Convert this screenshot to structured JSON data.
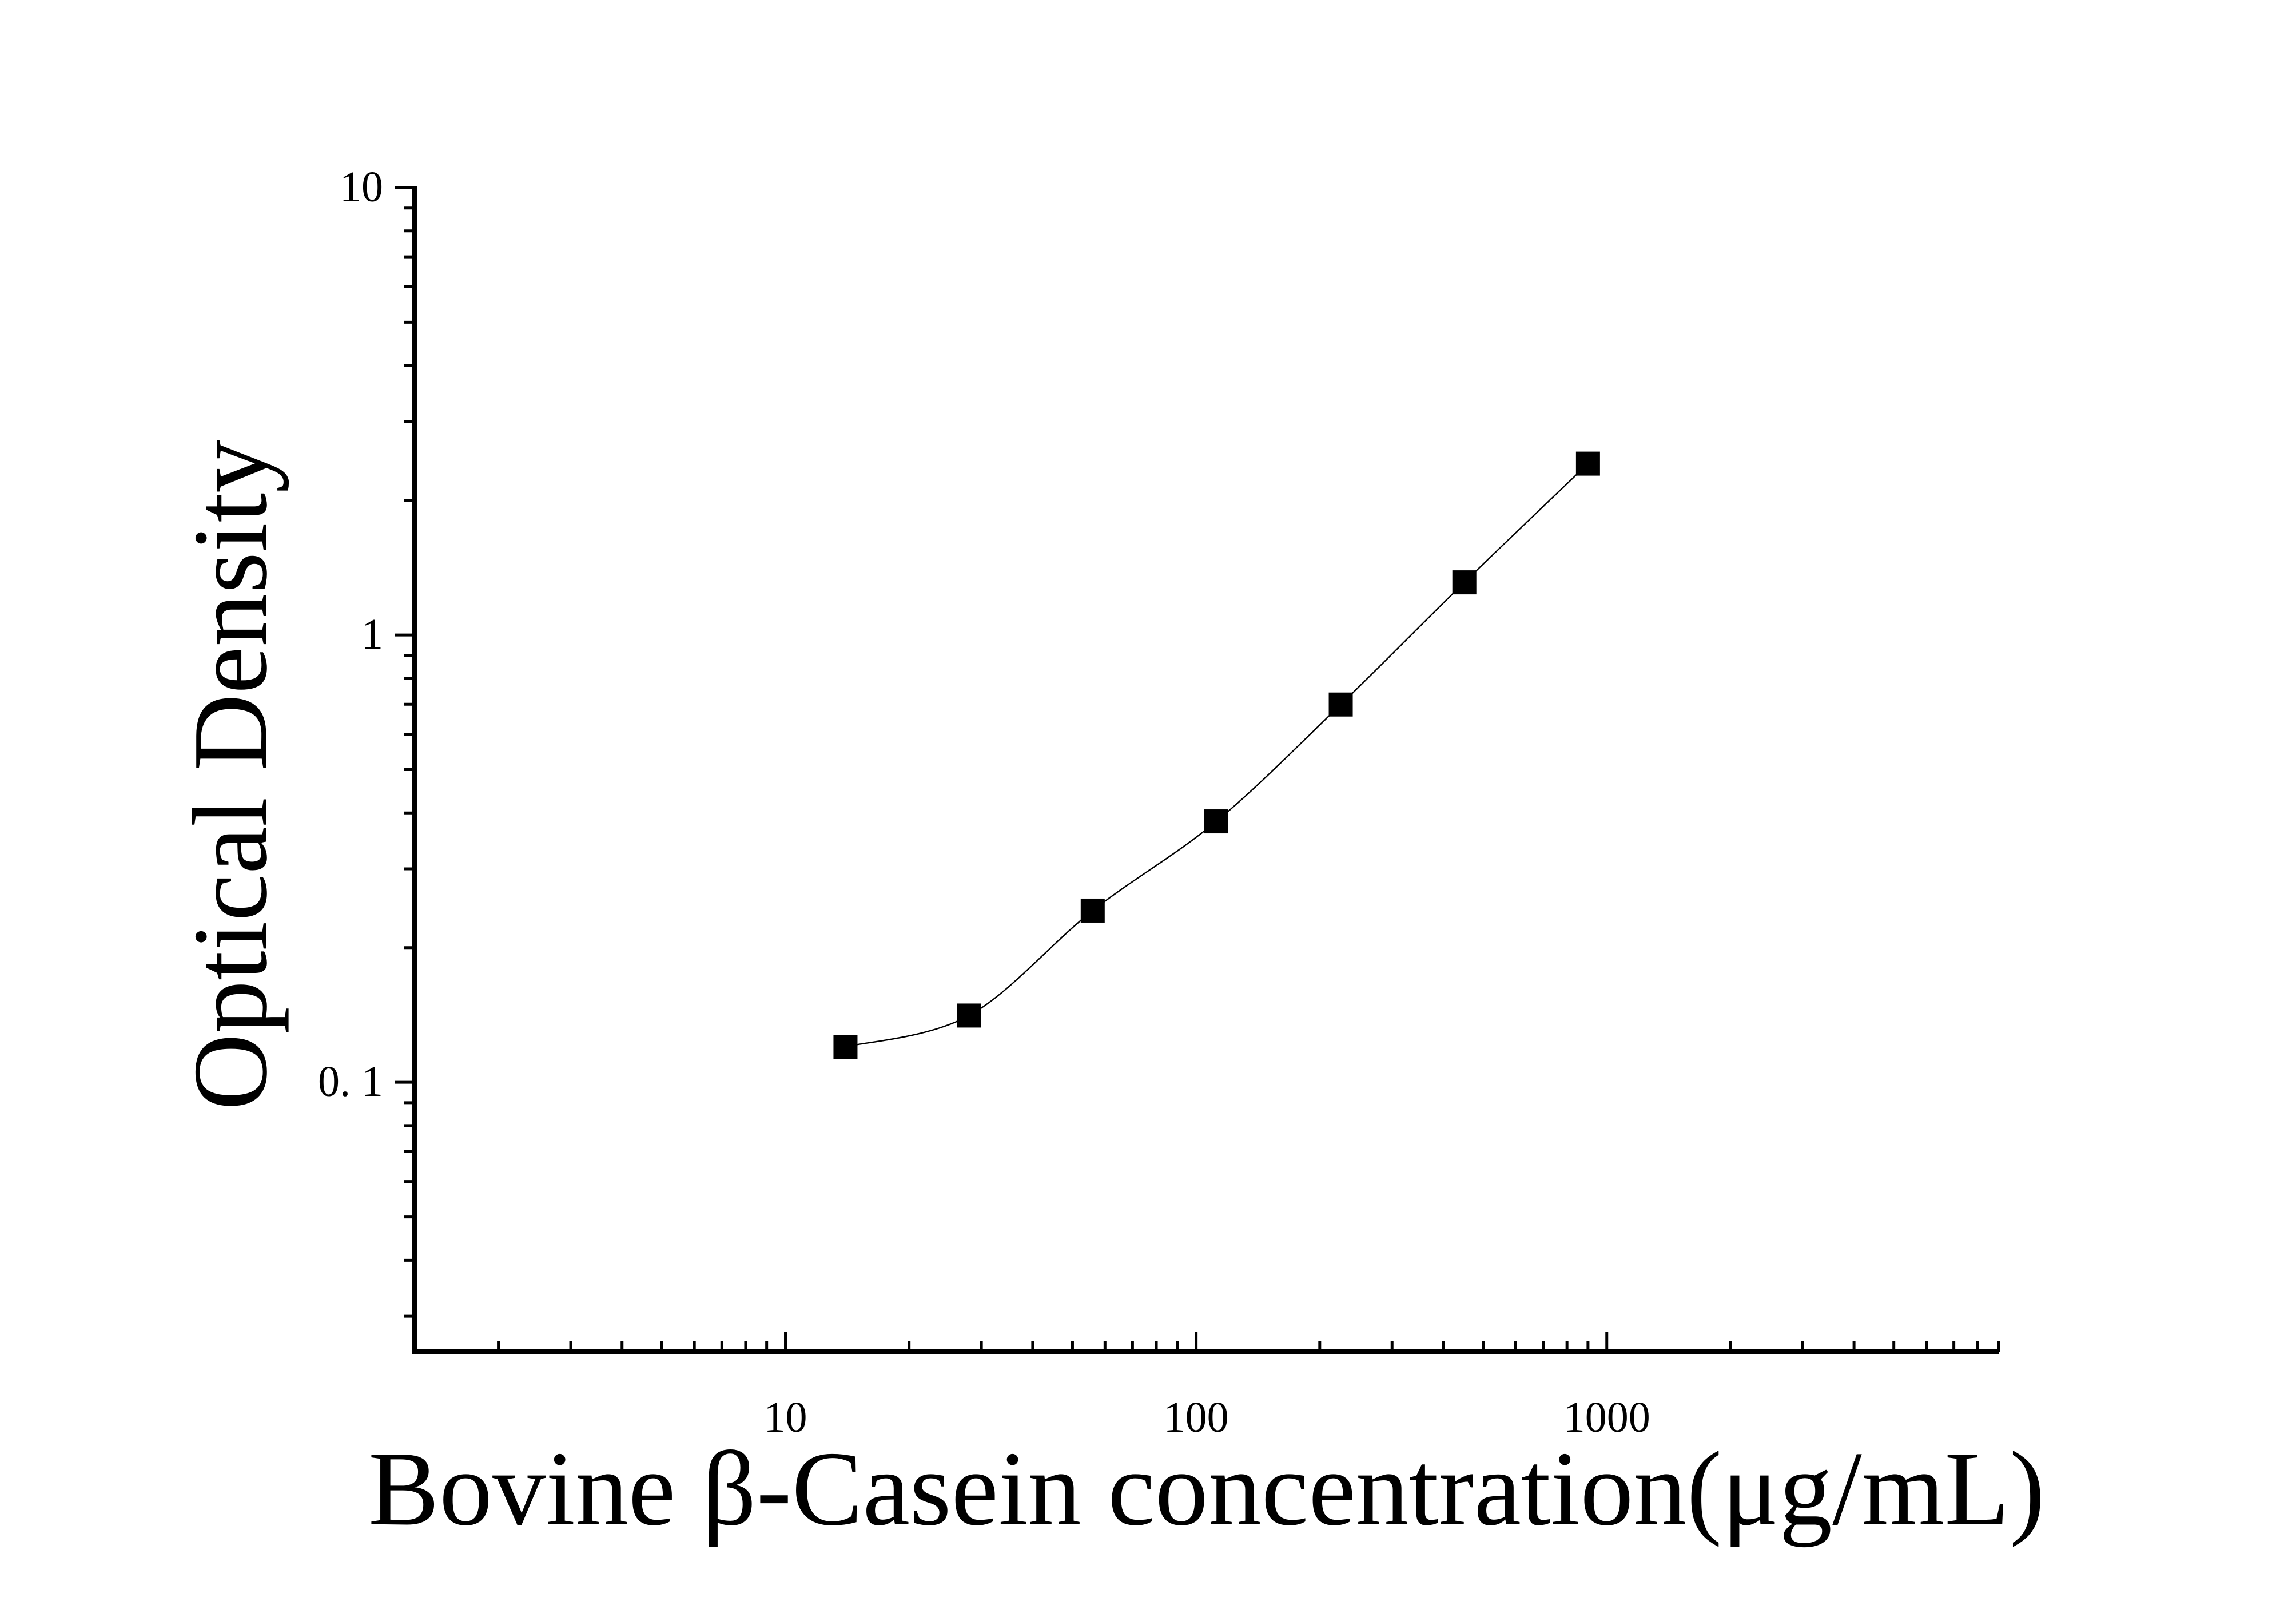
{
  "chart_data": {
    "type": "scatter",
    "title": "",
    "xlabel": "Bovine β-Casein concentration(μg/mL)",
    "ylabel": "Optical Density",
    "x_scale": "log",
    "y_scale": "log",
    "xlim": [
      1.25,
      9000
    ],
    "ylim": [
      0.025,
      10
    ],
    "x_ticks": [
      {
        "value": 10,
        "label": "10"
      },
      {
        "value": 100,
        "label": "100"
      },
      {
        "value": 1000,
        "label": "1000"
      }
    ],
    "y_ticks": [
      {
        "value": 0.1,
        "label": "0. 1"
      },
      {
        "value": 1,
        "label": "1"
      },
      {
        "value": 10,
        "label": "10"
      }
    ],
    "grid": false,
    "marker": "square",
    "series": [
      {
        "x": [
          14,
          28,
          56,
          112,
          225,
          450,
          900
        ],
        "y": [
          0.12,
          0.141,
          0.242,
          0.383,
          0.699,
          1.311,
          2.415
        ]
      }
    ],
    "fit_curve": true,
    "colors": {
      "marks": "#000000",
      "background": "#ffffff"
    }
  }
}
